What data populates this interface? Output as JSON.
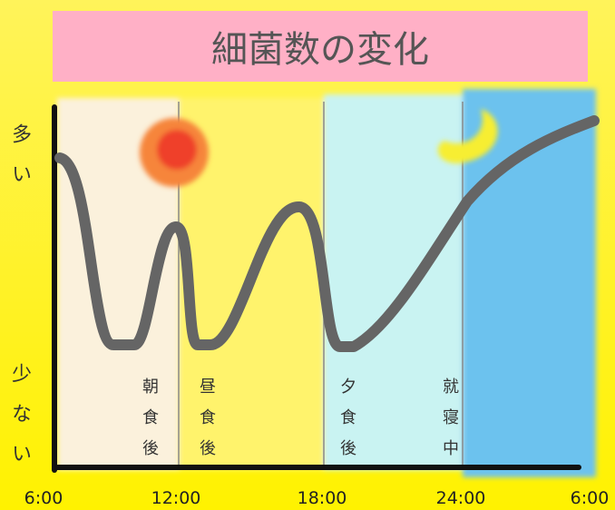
{
  "title": "細菌数の変化",
  "y_axis": {
    "high": "多い",
    "low": "少ない"
  },
  "x_labels": [
    "6:00",
    "12:00",
    "18:00",
    "24:00",
    "6:00"
  ],
  "annotations": [
    "朝食後",
    "昼食後",
    "夕食後",
    "就寝中"
  ]
}
